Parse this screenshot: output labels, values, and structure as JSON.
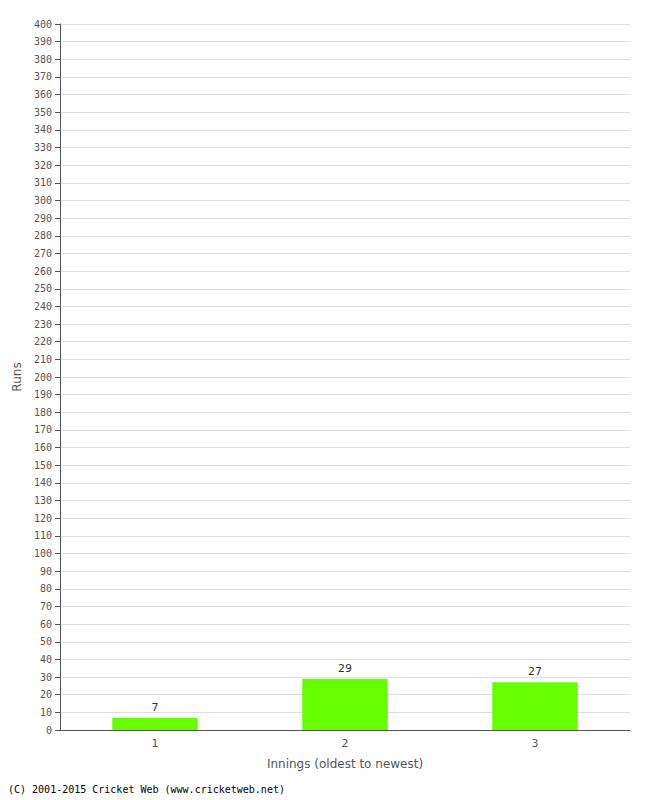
{
  "chart_data": {
    "type": "bar",
    "categories": [
      "1",
      "2",
      "3"
    ],
    "values": [
      7,
      29,
      27
    ],
    "color": "#66ff00",
    "xlabel": "Innings (oldest to newest)",
    "ylabel": "Runs",
    "ylim": [
      0,
      400
    ],
    "yticks": [
      0,
      10,
      20,
      30,
      40,
      50,
      60,
      70,
      80,
      90,
      100,
      110,
      120,
      130,
      140,
      150,
      160,
      170,
      180,
      190,
      200,
      210,
      220,
      230,
      240,
      250,
      260,
      270,
      280,
      290,
      300,
      310,
      320,
      330,
      340,
      350,
      360,
      370,
      380,
      390,
      400
    ],
    "grid": true,
    "data_labels": true,
    "annotations": [
      "(C) 2001-2015 Cricket Web (www.cricketweb.net)"
    ]
  }
}
